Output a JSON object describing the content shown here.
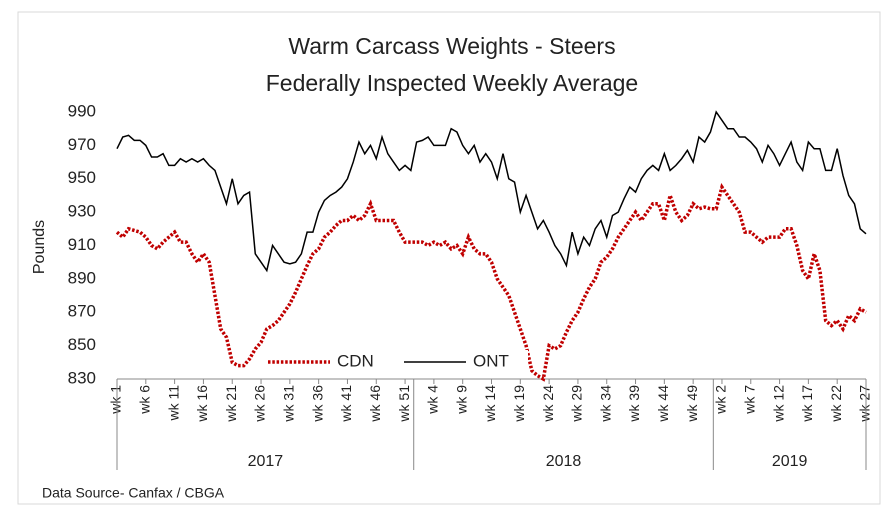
{
  "chart_data": {
    "type": "line",
    "title": "Warm Carcass Weights - Steers",
    "subtitle": "Federally Inspected Weekly Average",
    "y_label": "Pounds",
    "source": "Data Source- Canfax / CBGA",
    "ylim": [
      830,
      990
    ],
    "yticks": [
      830,
      850,
      870,
      890,
      910,
      930,
      950,
      970,
      990
    ],
    "grid": false,
    "legend": "bottom",
    "categories": [
      "wk 1",
      null,
      null,
      null,
      null,
      "wk 6",
      null,
      null,
      null,
      null,
      "wk 11",
      null,
      null,
      null,
      null,
      "wk 16",
      null,
      null,
      null,
      null,
      "wk 21",
      null,
      null,
      null,
      null,
      "wk 26",
      null,
      null,
      null,
      null,
      "wk 31",
      null,
      null,
      null,
      null,
      "wk 36",
      null,
      null,
      null,
      null,
      "wk 41",
      null,
      null,
      null,
      null,
      "wk 46",
      null,
      null,
      null,
      null,
      "wk 51",
      null,
      null,
      null,
      null,
      "wk 4",
      null,
      null,
      null,
      null,
      "wk 9",
      null,
      null,
      null,
      null,
      "wk 14",
      null,
      null,
      null,
      null,
      "wk 19",
      null,
      null,
      null,
      null,
      "wk 24",
      null,
      null,
      null,
      null,
      "wk 29",
      null,
      null,
      null,
      null,
      "wk 34",
      null,
      null,
      null,
      null,
      "wk 39",
      null,
      null,
      null,
      null,
      "wk 44",
      null,
      null,
      null,
      null,
      "wk 49",
      null,
      null,
      null,
      null,
      "wk 2",
      null,
      null,
      null,
      null,
      "wk 7",
      null,
      null,
      null,
      null,
      "wk 12",
      null,
      null,
      null,
      null,
      "wk 17",
      null,
      null,
      null,
      null,
      "wk 22",
      null,
      null,
      null,
      null,
      "wk 27"
    ],
    "year_groups": [
      {
        "label": "2017",
        "weeks": 52
      },
      {
        "label": "2018",
        "weeks": 52
      },
      {
        "label": "2019",
        "weeks": 27
      }
    ],
    "series": [
      {
        "name": "CDN",
        "color": "#c00000",
        "style": "dotted",
        "values": [
          918,
          915,
          920,
          919,
          918,
          915,
          910,
          908,
          912,
          915,
          918,
          912,
          912,
          905,
          900,
          905,
          900,
          880,
          860,
          855,
          840,
          838,
          838,
          842,
          848,
          852,
          860,
          862,
          865,
          870,
          875,
          882,
          890,
          898,
          905,
          908,
          915,
          918,
          922,
          925,
          925,
          928,
          925,
          928,
          935,
          925,
          925,
          925,
          925,
          918,
          912,
          912,
          912,
          912,
          910,
          912,
          910,
          912,
          908,
          910,
          905,
          915,
          908,
          905,
          905,
          900,
          890,
          885,
          880,
          870,
          860,
          850,
          835,
          832,
          830,
          850,
          848,
          850,
          858,
          865,
          870,
          878,
          885,
          890,
          900,
          903,
          908,
          915,
          920,
          925,
          930,
          925,
          930,
          935,
          935,
          925,
          940,
          930,
          925,
          928,
          935,
          932,
          933,
          932,
          932,
          945,
          940,
          935,
          930,
          918,
          918,
          915,
          912,
          915,
          915,
          915,
          920,
          920,
          910,
          895,
          890,
          905,
          895,
          865,
          862,
          865,
          860,
          868,
          865,
          872,
          870
        ]
      },
      {
        "name": "ONT",
        "color": "#000000",
        "style": "solid",
        "values": [
          968,
          975,
          976,
          973,
          973,
          970,
          963,
          963,
          965,
          958,
          958,
          962,
          960,
          962,
          960,
          962,
          958,
          955,
          945,
          935,
          950,
          935,
          940,
          942,
          905,
          900,
          895,
          910,
          905,
          900,
          899,
          900,
          905,
          918,
          918,
          930,
          937,
          940,
          942,
          945,
          950,
          960,
          972,
          965,
          970,
          962,
          975,
          965,
          960,
          955,
          958,
          955,
          972,
          973,
          975,
          970,
          970,
          970,
          980,
          978,
          970,
          965,
          970,
          960,
          965,
          960,
          950,
          965,
          950,
          948,
          930,
          940,
          930,
          920,
          925,
          918,
          910,
          905,
          898,
          918,
          905,
          915,
          910,
          920,
          925,
          915,
          928,
          930,
          938,
          945,
          942,
          950,
          955,
          958,
          955,
          965,
          955,
          958,
          962,
          967,
          960,
          975,
          972,
          978,
          990,
          985,
          980,
          980,
          975,
          975,
          972,
          968,
          960,
          970,
          965,
          958,
          965,
          972,
          960,
          955,
          972,
          968,
          968,
          955,
          955,
          968,
          952,
          940,
          935,
          920,
          917
        ]
      }
    ]
  }
}
